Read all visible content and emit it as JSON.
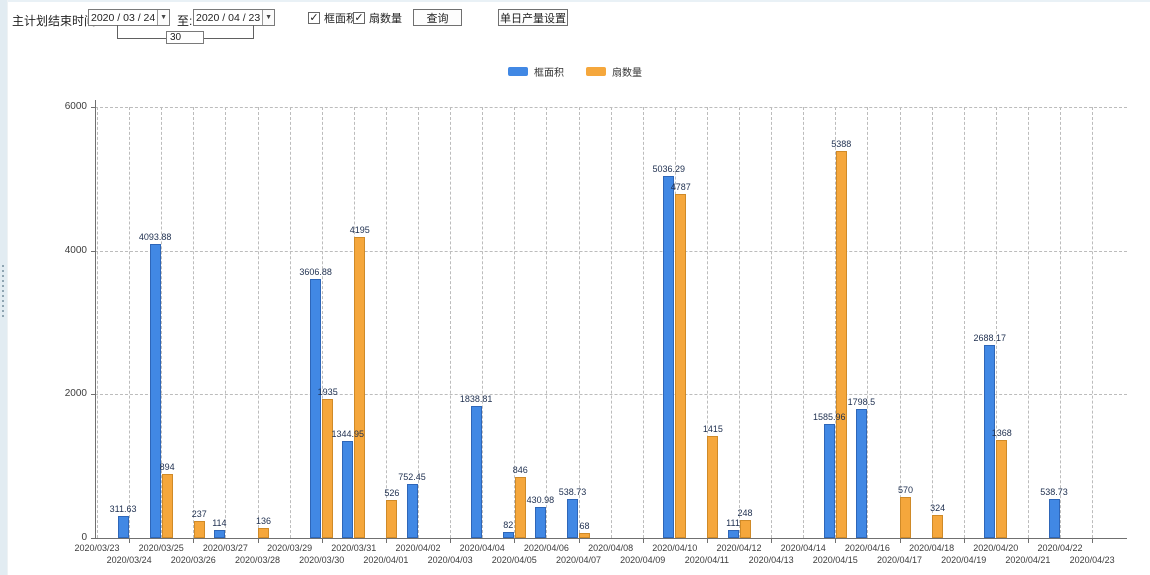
{
  "toolbar": {
    "end_time_label": "主计划结束时间:",
    "date_from": "2020 / 03 / 24",
    "to_label": "至:",
    "date_to": "2020 / 04 / 23",
    "days_between": "30",
    "checkbox_area_label": "框面积",
    "checkbox_fan_label": "扇数量",
    "checkbox_area_checked": "✓",
    "checkbox_fan_checked": "✓",
    "query_button": "查询",
    "daily_output_button": "单日产量设置",
    "dropdown_arrow": "▼"
  },
  "colors": {
    "series1": "#4188e4",
    "series1_border": "#2e66b8",
    "series2": "#f5a73c",
    "series2_border": "#cf8a28",
    "axis": "#707070",
    "grid": "#bcbcbc"
  },
  "chart_data": {
    "type": "bar",
    "title": "",
    "xlabel": "",
    "ylabel": "",
    "ylim": [
      0,
      6000
    ],
    "yticks": [
      "0",
      "2000",
      "4000",
      "6000"
    ],
    "grid": true,
    "legend_position": "top-center",
    "x_label_rows": 2,
    "categories": [
      "2020/03/23",
      "2020/03/24",
      "2020/03/25",
      "2020/03/26",
      "2020/03/27",
      "2020/03/28",
      "2020/03/29",
      "2020/03/30",
      "2020/03/31",
      "2020/04/01",
      "2020/04/02",
      "2020/04/03",
      "2020/04/04",
      "2020/04/05",
      "2020/04/06",
      "2020/04/07",
      "2020/04/08",
      "2020/04/09",
      "2020/04/10",
      "2020/04/11",
      "2020/04/12",
      "2020/04/13",
      "2020/04/14",
      "2020/04/15",
      "2020/04/16",
      "2020/04/17",
      "2020/04/18",
      "2020/04/19",
      "2020/04/20",
      "2020/04/21",
      "2020/04/22",
      "2020/04/23"
    ],
    "series": [
      {
        "name": "框面积",
        "values": [
          null,
          311.63,
          4093.88,
          null,
          114,
          null,
          null,
          3606.88,
          1344.95,
          null,
          752.45,
          null,
          1838.81,
          82,
          430.98,
          538.73,
          null,
          null,
          5036.29,
          null,
          111,
          null,
          null,
          1585.96,
          1798.5,
          null,
          null,
          null,
          2688.17,
          null,
          538.73,
          null
        ],
        "labels": [
          null,
          "311.63",
          "4093.88",
          null,
          "114",
          null,
          null,
          "3606.88",
          "1344.95",
          null,
          "752.45",
          null,
          "1838.81",
          "82",
          "430.98",
          "538.73",
          null,
          null,
          "5036.29",
          null,
          "111",
          null,
          null,
          "1585.96",
          "1798.5",
          null,
          null,
          null,
          "2688.17",
          null,
          "538.73",
          null
        ]
      },
      {
        "name": "扇数量",
        "values": [
          null,
          null,
          894,
          237,
          null,
          136,
          null,
          1935,
          4195,
          526,
          null,
          null,
          null,
          846,
          null,
          68,
          null,
          null,
          4787,
          1415,
          248,
          null,
          null,
          5388,
          null,
          570,
          324,
          null,
          1368,
          null,
          null,
          null
        ],
        "labels": [
          null,
          null,
          "894",
          "237",
          null,
          "136",
          null,
          "1935",
          "4195",
          "526",
          null,
          null,
          null,
          "846",
          null,
          "68",
          null,
          null,
          "4787",
          "1415",
          "248",
          null,
          null,
          "5388",
          null,
          "570",
          "324",
          null,
          "1368",
          null,
          null,
          null
        ]
      }
    ]
  }
}
